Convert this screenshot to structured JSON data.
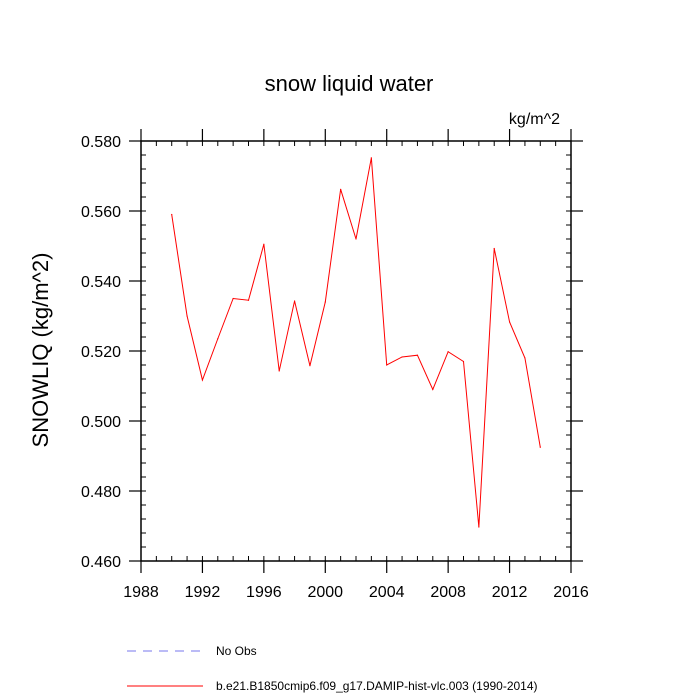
{
  "chart_data": {
    "type": "line",
    "title": "snow liquid water",
    "units": "kg/m^2",
    "ylabel": "SNOWLIQ  (kg/m^2)",
    "xlabel": "",
    "xlim": [
      1988,
      2016
    ],
    "ylim": [
      0.46,
      0.58
    ],
    "x_ticks": [
      "1988",
      "1992",
      "1996",
      "2000",
      "2004",
      "2008",
      "2012",
      "2016"
    ],
    "y_ticks": [
      "0.460",
      "0.480",
      "0.500",
      "0.520",
      "0.540",
      "0.560",
      "0.580"
    ],
    "series": [
      {
        "name": "b.e21.B1850cmip6.f09_g17.DAMIP-hist-vlc.003 (1990-2014)",
        "color": "#ff0000",
        "style": "solid",
        "x": [
          1990,
          1991,
          1992,
          1993,
          1994,
          1995,
          1996,
          1997,
          1998,
          1999,
          2000,
          2001,
          2002,
          2003,
          2004,
          2005,
          2006,
          2007,
          2008,
          2009,
          2010,
          2011,
          2012,
          2013,
          2014
        ],
        "values": [
          0.559,
          0.53,
          0.5117,
          0.5235,
          0.535,
          0.5345,
          0.5505,
          0.5143,
          0.5343,
          0.5158,
          0.534,
          0.5662,
          0.552,
          0.5752,
          0.516,
          0.5183,
          0.5188,
          0.509,
          0.5198,
          0.517,
          0.4697,
          0.5493,
          0.5283,
          0.518,
          0.4925
        ]
      }
    ],
    "legend": [
      {
        "label": "No Obs",
        "color": "#7777ee",
        "style": "dashed"
      },
      {
        "label": "b.e21.B1850cmip6.f09_g17.DAMIP-hist-vlc.003 (1990-2014)",
        "color": "#ff0000",
        "style": "solid"
      }
    ]
  }
}
